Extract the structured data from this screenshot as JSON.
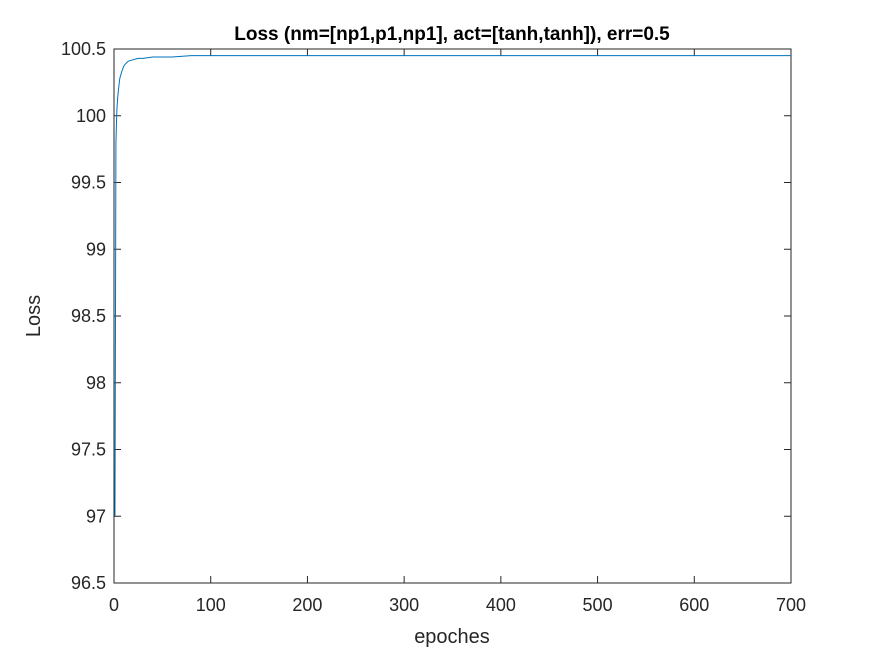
{
  "chart_data": {
    "type": "line",
    "title": "Loss (nm=[np1,p1,np1], act=[tanh,tanh]), err=0.5",
    "xlabel": "epoches",
    "ylabel": "Loss",
    "xlim": [
      0,
      700
    ],
    "ylim": [
      96.5,
      100.5
    ],
    "xticks": [
      "0",
      "100",
      "200",
      "300",
      "400",
      "500",
      "600",
      "700"
    ],
    "yticks": [
      "96.5",
      "97",
      "97.5",
      "98",
      "98.5",
      "99",
      "99.5",
      "100",
      "100.5"
    ],
    "grid": false,
    "legend": "none",
    "line_color": "#0072BD",
    "series": [
      {
        "x": [
          1,
          2,
          3,
          4,
          5,
          6,
          8,
          10,
          12,
          15,
          20,
          25,
          30,
          40,
          50,
          60,
          80,
          100,
          150,
          200,
          300,
          400,
          500,
          600,
          700
        ],
        "values": [
          97.0,
          99.8,
          100.05,
          100.15,
          100.22,
          100.28,
          100.33,
          100.37,
          100.39,
          100.41,
          100.42,
          100.43,
          100.43,
          100.44,
          100.44,
          100.44,
          100.45,
          100.45,
          100.45,
          100.45,
          100.45,
          100.45,
          100.45,
          100.45,
          100.45
        ]
      }
    ]
  }
}
